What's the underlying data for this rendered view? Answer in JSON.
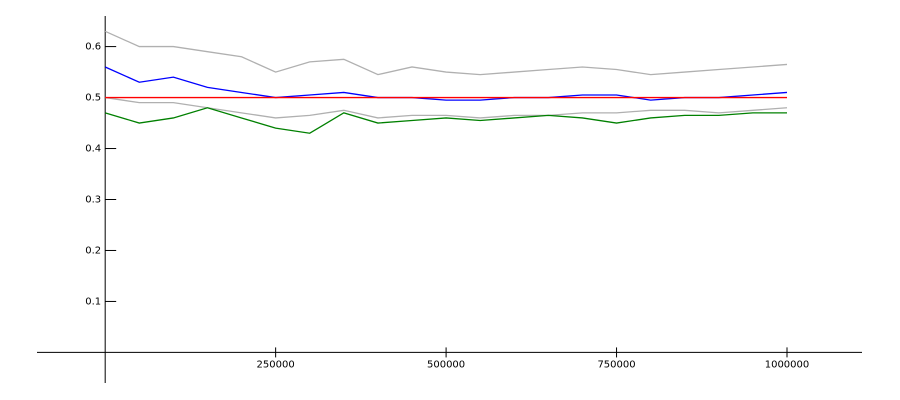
{
  "chart_data": {
    "type": "line",
    "x": [
      0,
      50000,
      100000,
      150000,
      200000,
      250000,
      300000,
      350000,
      400000,
      450000,
      500000,
      550000,
      600000,
      650000,
      700000,
      750000,
      800000,
      850000,
      900000,
      950000,
      1000000
    ],
    "series": [
      {
        "color": "#b0b0b0",
        "values": [
          0.63,
          0.6,
          0.6,
          0.59,
          0.58,
          0.55,
          0.57,
          0.575,
          0.545,
          0.56,
          0.55,
          0.545,
          0.55,
          0.555,
          0.56,
          0.555,
          0.545,
          0.55,
          0.555,
          0.56,
          0.565
        ]
      },
      {
        "color": "#b0b0b0",
        "values": [
          0.5,
          0.49,
          0.49,
          0.48,
          0.47,
          0.46,
          0.465,
          0.475,
          0.46,
          0.465,
          0.465,
          0.46,
          0.465,
          0.465,
          0.47,
          0.47,
          0.475,
          0.475,
          0.47,
          0.475,
          0.48
        ]
      },
      {
        "color": "#0000ff",
        "values": [
          0.56,
          0.53,
          0.54,
          0.52,
          0.51,
          0.5,
          0.505,
          0.51,
          0.5,
          0.5,
          0.495,
          0.495,
          0.5,
          0.5,
          0.505,
          0.505,
          0.495,
          0.5,
          0.5,
          0.505,
          0.51
        ]
      },
      {
        "color": "#008000",
        "values": [
          0.47,
          0.45,
          0.46,
          0.48,
          0.46,
          0.44,
          0.43,
          0.47,
          0.45,
          0.455,
          0.46,
          0.455,
          0.46,
          0.465,
          0.46,
          0.45,
          0.46,
          0.465,
          0.465,
          0.47,
          0.47
        ]
      },
      {
        "color": "#ff0000",
        "values": [
          0.5,
          0.5,
          0.5,
          0.5,
          0.5,
          0.5,
          0.5,
          0.5,
          0.5,
          0.5,
          0.5,
          0.5,
          0.5,
          0.5,
          0.5,
          0.5,
          0.5,
          0.5,
          0.5,
          0.5,
          0.5
        ]
      }
    ],
    "xlim": [
      -100000,
      1110000
    ],
    "ylim": [
      -0.06,
      0.66
    ],
    "xticks": [
      250000,
      500000,
      750000,
      1000000
    ],
    "yticks": [
      0.1,
      0.2,
      0.3,
      0.4,
      0.5,
      0.6
    ]
  }
}
